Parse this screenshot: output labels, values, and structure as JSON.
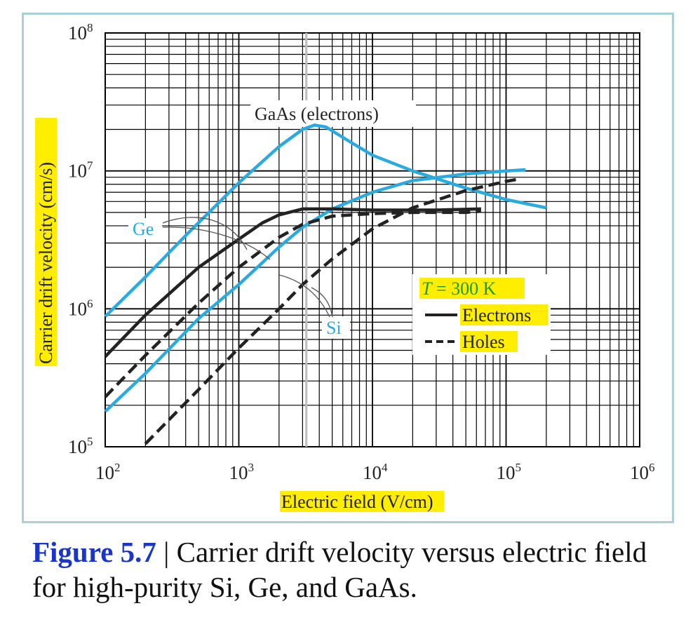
{
  "chart_data": {
    "type": "line",
    "x_scale": "log",
    "y_scale": "log",
    "xlim": [
      100,
      1000000
    ],
    "ylim": [
      100000,
      100000000
    ],
    "xlabel": "Electric field (V/cm)",
    "ylabel": "Carrier drift velocity (cm/s)",
    "x_ticks": [
      {
        "base": "10",
        "exp": "2",
        "value": 100
      },
      {
        "base": "10",
        "exp": "3",
        "value": 1000
      },
      {
        "base": "10",
        "exp": "4",
        "value": 10000
      },
      {
        "base": "10",
        "exp": "5",
        "value": 100000
      },
      {
        "base": "10",
        "exp": "6",
        "value": 1000000
      }
    ],
    "y_ticks": [
      {
        "base": "10",
        "exp": "5",
        "value": 100000
      },
      {
        "base": "10",
        "exp": "6",
        "value": 1000000
      },
      {
        "base": "10",
        "exp": "7",
        "value": 10000000
      },
      {
        "base": "10",
        "exp": "8",
        "value": 100000000
      }
    ],
    "grid": "log, minor and major",
    "highlight_color": "#ffee00",
    "curve_color_light": "#29abe2",
    "curve_color_dark": "#222222",
    "series": [
      {
        "material": "GaAs",
        "carrier": "electrons",
        "style": "solid",
        "color": "#29abe2",
        "x": [
          100,
          200,
          400,
          1000,
          2000,
          3000,
          3700,
          4500,
          6000,
          10000,
          20000,
          50000,
          100000,
          200000
        ],
        "y": [
          880000,
          1700000,
          3400000,
          8200000,
          15000000,
          20000000,
          21500000,
          20800000,
          17500000,
          13000000,
          10000000,
          7500000,
          6200000,
          5400000
        ]
      },
      {
        "material": "Si",
        "carrier": "electrons",
        "style": "solid",
        "color": "#29abe2",
        "x": [
          100,
          200,
          500,
          1000,
          2000,
          3000,
          5000,
          10000,
          20000,
          50000,
          100000,
          140000
        ],
        "y": [
          180000,
          340000,
          850000,
          1500000,
          2800000,
          3900000,
          5300000,
          7000000,
          8500000,
          9500000,
          10000000,
          10200000
        ]
      },
      {
        "material": "Ge",
        "carrier": "electrons",
        "style": "solid",
        "color": "#222222",
        "x": [
          100,
          200,
          500,
          1000,
          1500,
          2000,
          3000,
          5000,
          10000,
          30000,
          65000
        ],
        "y": [
          450000,
          900000,
          2000000,
          3200000,
          4200000,
          4800000,
          5300000,
          5300000,
          5200000,
          5200000,
          5300000
        ]
      },
      {
        "material": "Ge",
        "carrier": "holes",
        "style": "dashed",
        "color": "#222222",
        "x": [
          100,
          200,
          500,
          1000,
          2000,
          3000,
          5000,
          10000,
          20000,
          50000,
          65000
        ],
        "y": [
          230000,
          460000,
          1100000,
          2000000,
          3300000,
          4100000,
          4700000,
          4900000,
          5000000,
          5000000,
          5100000
        ]
      },
      {
        "material": "Si",
        "carrier": "holes",
        "style": "dashed",
        "color": "#222222",
        "x": [
          200,
          500,
          1000,
          2000,
          3000,
          5000,
          10000,
          20000,
          50000,
          100000,
          130000
        ],
        "y": [
          105000,
          260000,
          520000,
          1000000,
          1500000,
          2300000,
          3800000,
          5400000,
          7200000,
          8400000,
          8800000
        ]
      }
    ],
    "labels": {
      "gaas": "GaAs (electrons)",
      "ge": "Ge",
      "si": "Si"
    },
    "legend": {
      "title_italic": "T",
      "title_rest": " = 300 K",
      "electrons": "Electrons",
      "holes": "Holes",
      "placement": "center-right"
    }
  },
  "caption": {
    "figure": "Figure 5.7",
    "separator": " | ",
    "text": "Carrier drift velocity versus electric field for high-purity Si, Ge, and GaAs."
  }
}
